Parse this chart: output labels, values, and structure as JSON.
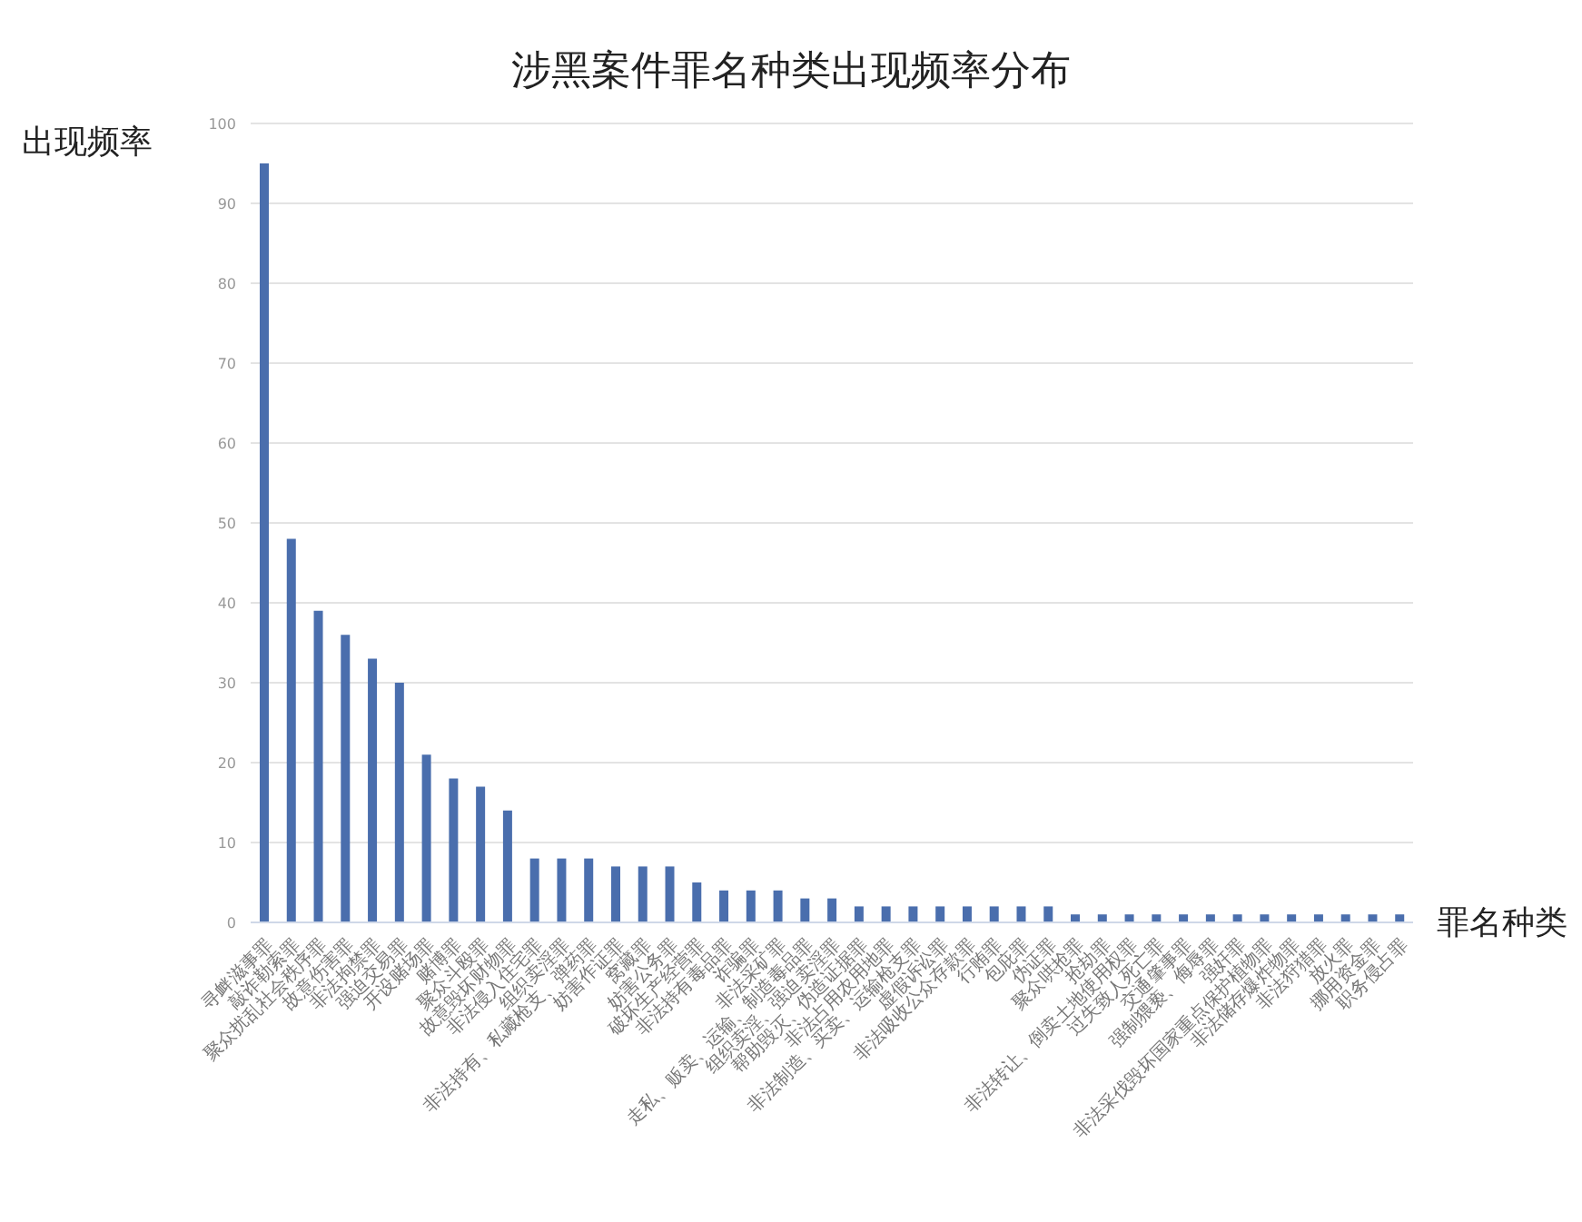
{
  "chart_data": {
    "type": "bar",
    "title": "涉黑案件罪名种类出现频率分布",
    "xlabel": "罪名种类",
    "ylabel": "出现频率",
    "categories": [
      "寻衅滋事罪",
      "敲诈勒索罪",
      "聚众扰乱社会秩序罪",
      "故意伤害罪",
      "非法拘禁罪",
      "强迫交易罪",
      "开设赌场罪",
      "赌博罪",
      "聚众斗殴罪",
      "故意毁坏财物罪",
      "非法侵入住宅罪",
      "组织卖淫罪",
      "非法持有、私藏枪支、弹药罪",
      "妨害作证罪",
      "窝藏罪",
      "妨害公务罪",
      "破坏生产经营罪",
      "非法持有毒品罪",
      "诈骗罪",
      "非法采矿罪",
      "走私、贩卖、运输、制造毒品罪",
      "组织卖淫、强迫卖淫罪",
      "帮助毁灭、伪造证据罪",
      "非法占用农用地罪",
      "非法制造、买卖、运输枪支罪",
      "虚假诉讼罪",
      "非法吸收公众存款罪",
      "行贿罪",
      "包庇罪",
      "伪证罪",
      "聚众哄抢罪",
      "抢劫罪",
      "非法转让、倒卖土地使用权罪",
      "过失致人死亡罪",
      "交通肇事罪",
      "强制猥亵、侮辱罪",
      "强奸罪",
      "非法采伐毁坏国家重点保护植物罪",
      "非法储存爆炸物罪",
      "非法狩猎罪",
      "放火罪",
      "挪用资金罪",
      "职务侵占罪"
    ],
    "values": [
      95,
      48,
      39,
      36,
      33,
      30,
      21,
      18,
      17,
      14,
      8,
      8,
      8,
      7,
      7,
      7,
      5,
      4,
      4,
      4,
      3,
      3,
      2,
      2,
      2,
      2,
      2,
      2,
      2,
      2,
      1,
      1,
      1,
      1,
      1,
      1,
      1,
      1,
      1,
      1,
      1,
      1,
      1
    ],
    "color": "#4a6ead",
    "ylim": [
      0,
      100
    ],
    "yticks": [
      0,
      10,
      20,
      30,
      40,
      50,
      60,
      70,
      80,
      90,
      100
    ],
    "grid": "y"
  }
}
